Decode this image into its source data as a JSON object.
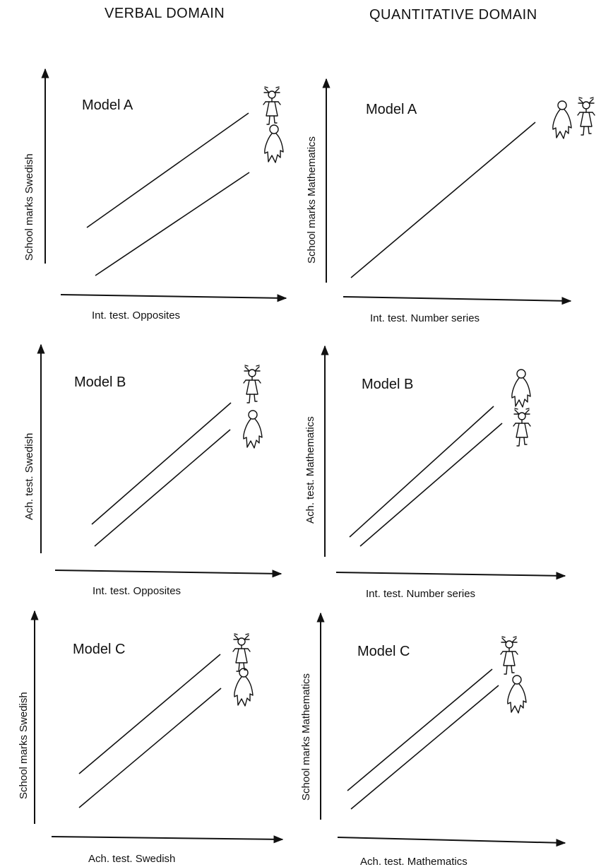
{
  "columns": {
    "verbal": "VERBAL DOMAIN",
    "quantitative": "QUANTITATIVE DOMAIN"
  },
  "panels": [
    {
      "id": "verbal-a",
      "model": "Model A",
      "xlabel": "Int. test. Opposites",
      "ylabel": "School marks Swedish",
      "order": "girl-above-boy"
    },
    {
      "id": "quant-a",
      "model": "Model A",
      "xlabel": "Int. test. Number series",
      "ylabel": "School marks Mathematics",
      "order": "single-line-both"
    },
    {
      "id": "verbal-b",
      "model": "Model B",
      "xlabel": "Int. test. Opposites",
      "ylabel": "Ach. test. Swedish",
      "order": "girl-above-boy"
    },
    {
      "id": "quant-b",
      "model": "Model B",
      "xlabel": "Int. test. Number series",
      "ylabel": "Ach. test. Mathematics",
      "order": "boy-above-girl"
    },
    {
      "id": "verbal-c",
      "model": "Model C",
      "xlabel": "Ach. test. Swedish",
      "ylabel": "School marks Swedish",
      "order": "girl-above-boy"
    },
    {
      "id": "quant-c",
      "model": "Model C",
      "xlabel": "Ach. test. Mathematics",
      "ylabel": "School marks Mathematics",
      "order": "girl-above-boy"
    }
  ],
  "icons": {
    "girl": "girl-figure-icon",
    "boy": "boy-figure-icon"
  }
}
